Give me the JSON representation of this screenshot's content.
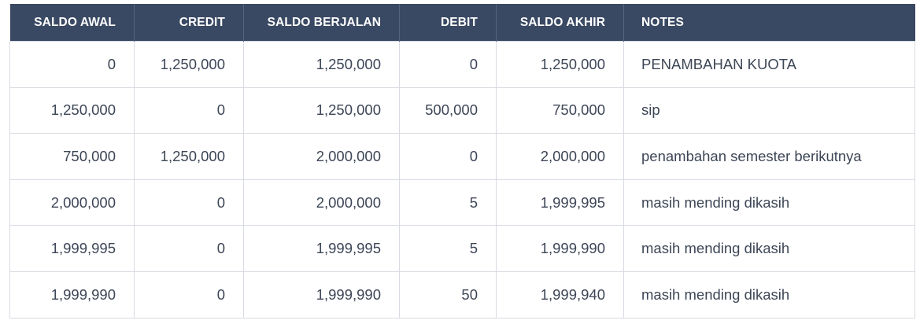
{
  "table": {
    "columns": [
      "SALDO AWAL",
      "CREDIT",
      "SALDO BERJALAN",
      "DEBIT",
      "SALDO AKHIR",
      "NOTES"
    ],
    "rows": [
      [
        "0",
        "1,250,000",
        "1,250,000",
        "0",
        "1,250,000",
        "PENAMBAHAN KUOTA"
      ],
      [
        "1,250,000",
        "0",
        "1,250,000",
        "500,000",
        "750,000",
        "sip"
      ],
      [
        "750,000",
        "1,250,000",
        "2,000,000",
        "0",
        "2,000,000",
        "penambahan semester berikutnya"
      ],
      [
        "2,000,000",
        "0",
        "2,000,000",
        "5",
        "1,999,995",
        "masih mending dikasih"
      ],
      [
        "1,999,995",
        "0",
        "1,999,995",
        "5",
        "1,999,990",
        "masih mending dikasih"
      ],
      [
        "1,999,990",
        "0",
        "1,999,990",
        "50",
        "1,999,940",
        "masih mending dikasih"
      ]
    ]
  },
  "colors": {
    "header_bg": "#3a4963",
    "header_text": "#ffffff",
    "cell_text": "#3d4656",
    "grid_line": "#d8dbe2"
  }
}
